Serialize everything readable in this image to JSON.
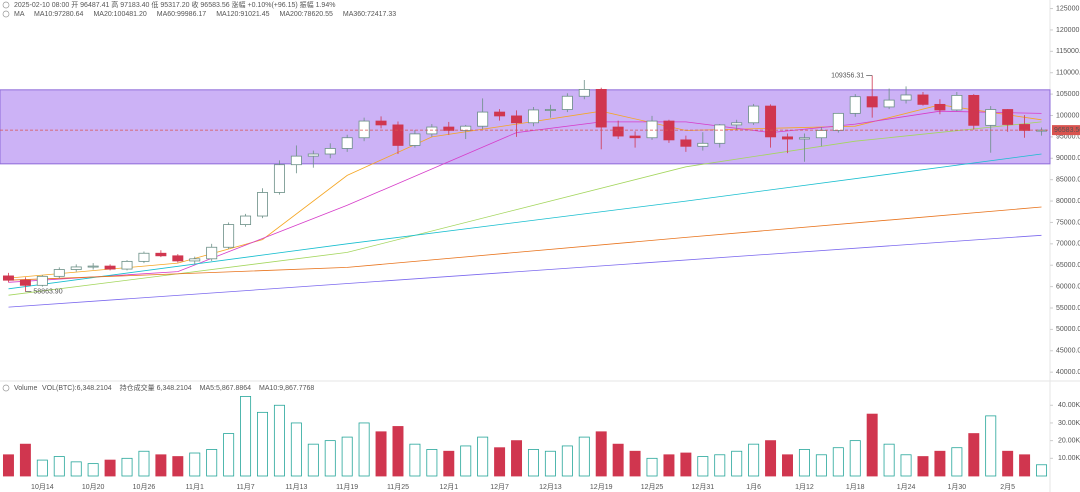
{
  "chart_data": [
    {
      "type": "candlestick",
      "title": "2025-02-10 08:00  开 96487.41  高 97183.40  低 95317.20  收 96583.56  涨幅 +0.10%(+96.15)  振幅 1.94%",
      "indicator": "MA",
      "categories": [
        null,
        null,
        "10月14",
        null,
        null,
        "10月20",
        null,
        null,
        "10月26",
        null,
        null,
        "11月1",
        null,
        null,
        "11月7",
        null,
        null,
        "11月13",
        null,
        null,
        "11月19",
        null,
        null,
        "11月25",
        null,
        null,
        "12月1",
        null,
        null,
        "12月7",
        null,
        null,
        "12月13",
        null,
        null,
        "12月19",
        null,
        null,
        "12月25",
        null,
        null,
        "12月31",
        null,
        null,
        "1月6",
        null,
        null,
        "1月12",
        null,
        null,
        "1月18",
        null,
        null,
        "1月24",
        null,
        null,
        "1月30",
        null,
        null,
        "2月5",
        null,
        null
      ],
      "open": [
        62500,
        61500,
        60300,
        62400,
        64000,
        64600,
        64800,
        64100,
        65900,
        67800,
        67200,
        66000,
        66500,
        69200,
        74500,
        76500,
        82000,
        88500,
        90500,
        91000,
        92300,
        94800,
        98700,
        97800,
        93000,
        95700,
        97300,
        96500,
        97500,
        100800,
        99900,
        98300,
        101300,
        101400,
        104500,
        106100,
        97300,
        95200,
        94800,
        98700,
        94300,
        92800,
        93500,
        97800,
        98300,
        102200,
        95000,
        94500,
        94800,
        96500,
        100500,
        104400,
        102000,
        103600,
        104800,
        102600,
        101300,
        104700,
        97700,
        101400,
        97900,
        96500
      ],
      "high": [
        63200,
        62200,
        62700,
        64500,
        65200,
        65500,
        65200,
        66200,
        68200,
        68500,
        67600,
        67000,
        70000,
        75000,
        77000,
        83000,
        89500,
        93000,
        91800,
        93500,
        95500,
        99500,
        99800,
        98600,
        96600,
        98000,
        98500,
        97800,
        104000,
        101500,
        101200,
        102000,
        102500,
        105200,
        108300,
        106500,
        98800,
        96300,
        99900,
        99000,
        95300,
        96100,
        98000,
        99000,
        102700,
        102600,
        95800,
        95800,
        97300,
        100600,
        105000,
        109356.31,
        106300,
        106800,
        105500,
        103800,
        105500,
        105000,
        102200,
        101500,
        100100,
        97200
      ],
      "low": [
        61000,
        58863.9,
        60000,
        62000,
        63500,
        64000,
        63800,
        63800,
        65500,
        66900,
        65600,
        65300,
        66000,
        68800,
        74000,
        76000,
        81500,
        86500,
        87800,
        90000,
        91500,
        94000,
        97000,
        91000,
        92500,
        95000,
        95500,
        94500,
        96800,
        98800,
        95000,
        97500,
        99500,
        100800,
        103800,
        92100,
        94500,
        92500,
        94300,
        93600,
        91500,
        91800,
        92500,
        96500,
        97800,
        92500,
        91200,
        89200,
        92800,
        96000,
        99700,
        99500,
        101500,
        102800,
        102300,
        100300,
        101000,
        96700,
        91300,
        96200,
        94800,
        95300
      ],
      "close": [
        61500,
        60300,
        62400,
        64000,
        64600,
        64800,
        64100,
        65900,
        67800,
        67200,
        66000,
        66500,
        69200,
        74500,
        76500,
        82000,
        88500,
        90500,
        91000,
        92300,
        94800,
        98700,
        97800,
        93000,
        95700,
        97300,
        96500,
        97500,
        100800,
        99900,
        98300,
        101300,
        101400,
        104500,
        106100,
        97300,
        95200,
        94800,
        98700,
        94300,
        92800,
        93500,
        97800,
        98300,
        102200,
        95000,
        94500,
        94800,
        96500,
        100500,
        104400,
        102000,
        103600,
        104800,
        102600,
        101300,
        104700,
        97700,
        101400,
        97900,
        96500,
        96583.56
      ],
      "up_color": "#26a69a",
      "down_color": "#d0364f",
      "series": [
        {
          "name": "MA10",
          "label": "MA10:97280.64",
          "color": "#f5a623",
          "x": [
            0,
            10,
            15,
            20,
            25,
            30,
            35,
            40,
            45,
            50,
            55,
            61
          ],
          "values": [
            62000,
            65500,
            71000,
            86000,
            95000,
            98000,
            101000,
            96500,
            97000,
            97500,
            102500,
            99000
          ]
        },
        {
          "name": "MA20",
          "label": "MA20:100481.20",
          "color": "#d63cc9",
          "x": [
            0,
            10,
            20,
            30,
            35,
            40,
            45,
            50,
            55,
            61
          ],
          "values": [
            61000,
            63500,
            79000,
            96000,
            98500,
            98500,
            96000,
            98000,
            101000,
            100500
          ]
        },
        {
          "name": "MA60",
          "label": "MA60:99986.17",
          "color": "#a4d65e",
          "x": [
            0,
            20,
            30,
            40,
            50,
            61
          ],
          "values": [
            58000,
            68000,
            78000,
            88000,
            94000,
            98500
          ]
        },
        {
          "name": "MA120",
          "label": "MA120:91021.45",
          "color": "#17becf",
          "x": [
            0,
            20,
            40,
            61
          ],
          "values": [
            59500,
            70000,
            80000,
            91000
          ]
        },
        {
          "name": "MA200",
          "label": "MA200:78620.55",
          "color": "#e8731c",
          "x": [
            0,
            20,
            40,
            61
          ],
          "values": [
            61500,
            64500,
            71500,
            78600
          ]
        },
        {
          "name": "MA360",
          "label": "MA360:72417.33",
          "color": "#7b68ee",
          "x": [
            0,
            61
          ],
          "values": [
            55200,
            72000
          ]
        }
      ],
      "zone": {
        "from": 88700,
        "to": 106000,
        "color": "#c3a5f5"
      },
      "last_price": 96583.56,
      "max_label": 109356.31,
      "min_label": {
        "value": 58863.9,
        "label": "58863.90"
      },
      "ylim": [
        37000,
        127000
      ],
      "yticks": [
        {
          "value": 40000,
          "label": "40000.00"
        },
        {
          "value": 45000,
          "label": "45000.00"
        },
        {
          "value": 50000,
          "label": "50000.00"
        },
        {
          "value": 55000,
          "label": "55000.00"
        },
        {
          "value": 60000,
          "label": "60000.00"
        },
        {
          "value": 65000,
          "label": "65000.00"
        },
        {
          "value": 70000,
          "label": "70000.00"
        },
        {
          "value": 75000,
          "label": "75000.00"
        },
        {
          "value": 80000,
          "label": "80000.00"
        },
        {
          "value": 85000,
          "label": "85000.00"
        },
        {
          "value": 90000,
          "label": "90000.00"
        },
        {
          "value": 95000,
          "label": "95000.00"
        },
        {
          "value": 100000,
          "label": "100000.00"
        },
        {
          "value": 105000,
          "label": "105000.00"
        },
        {
          "value": 110000,
          "label": "110000.00"
        },
        {
          "value": 115000,
          "label": "115000.00"
        },
        {
          "value": 120000,
          "label": "120000.00"
        },
        {
          "value": 125000,
          "label": "125000.00"
        }
      ]
    },
    {
      "type": "bar",
      "title": "Volume",
      "legend_texts": [
        "VOL(BTC):6,348.2104",
        "持仓成交量 6,348.2104",
        "MA5:5,867.8864",
        "MA10:9,867.7768"
      ],
      "values": [
        12000,
        18000,
        9000,
        11000,
        8000,
        7000,
        9000,
        10000,
        14000,
        12000,
        11000,
        13000,
        15000,
        24000,
        45000,
        36000,
        40000,
        30000,
        18000,
        20000,
        22000,
        30000,
        25000,
        28000,
        18000,
        15000,
        14000,
        17000,
        22000,
        16000,
        20000,
        15000,
        14000,
        17000,
        22000,
        25000,
        18000,
        14000,
        10000,
        12000,
        13000,
        11000,
        12000,
        14000,
        18000,
        20000,
        12000,
        15000,
        12000,
        16000,
        20000,
        35000,
        18000,
        12000,
        11000,
        14000,
        16000,
        24000,
        34000,
        14000,
        12000,
        6348.2104
      ],
      "ylim": [
        0,
        47500
      ],
      "yticks": [
        {
          "value": 10000,
          "label": "10.00K"
        },
        {
          "value": 20000,
          "label": "20.00K"
        },
        {
          "value": 30000,
          "label": "30.00K"
        },
        {
          "value": 40000,
          "label": "40.00K"
        }
      ]
    }
  ]
}
